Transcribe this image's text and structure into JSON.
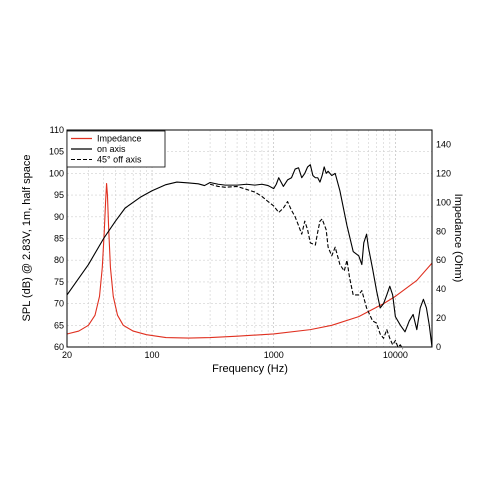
{
  "chart_data": {
    "type": "line",
    "xscale": "log",
    "xlim": [
      20,
      20000
    ],
    "ylim_left": [
      60,
      110
    ],
    "ylim_right": [
      0,
      150
    ],
    "xlabel": "Frequency (Hz)",
    "ylabel_left": "SPL (dB) @ 2.83V, 1m, half space",
    "ylabel_right": "Impedance (Ohm)",
    "x_tick_labels": [
      "20",
      "100",
      "1000",
      "10000"
    ],
    "x_ticks": [
      20,
      100,
      1000,
      10000
    ],
    "y_left_ticks": [
      60,
      65,
      70,
      75,
      80,
      85,
      90,
      95,
      100,
      105,
      110
    ],
    "y_right_ticks": [
      0,
      20,
      40,
      60,
      80,
      100,
      120,
      140
    ],
    "grid": true,
    "legend_position": "top-left",
    "series": [
      {
        "name": "Impedance",
        "axis": "right",
        "color": "#e03020",
        "style": "solid",
        "points": [
          [
            20,
            9
          ],
          [
            25,
            11
          ],
          [
            30,
            15
          ],
          [
            34,
            22
          ],
          [
            37,
            35
          ],
          [
            39,
            55
          ],
          [
            40.5,
            80
          ],
          [
            41.5,
            100
          ],
          [
            42.3,
            113
          ],
          [
            43,
            105
          ],
          [
            44,
            82
          ],
          [
            45.5,
            55
          ],
          [
            48,
            35
          ],
          [
            52,
            22
          ],
          [
            58,
            15
          ],
          [
            70,
            11
          ],
          [
            90,
            8.5
          ],
          [
            130,
            6.5
          ],
          [
            200,
            6.2
          ],
          [
            300,
            6.5
          ],
          [
            500,
            7.5
          ],
          [
            800,
            8.5
          ],
          [
            1000,
            9
          ],
          [
            2000,
            12
          ],
          [
            3000,
            15
          ],
          [
            5000,
            21
          ],
          [
            8000,
            30
          ],
          [
            10000,
            35
          ],
          [
            15000,
            46
          ],
          [
            20000,
            58
          ]
        ]
      },
      {
        "name": "on axis",
        "axis": "left",
        "color": "#000000",
        "style": "solid",
        "points": [
          [
            20,
            72
          ],
          [
            30,
            79
          ],
          [
            40,
            85
          ],
          [
            50,
            89
          ],
          [
            60,
            92
          ],
          [
            80,
            94.5
          ],
          [
            100,
            96
          ],
          [
            130,
            97.4
          ],
          [
            160,
            98
          ],
          [
            200,
            97.8
          ],
          [
            240,
            97.6
          ],
          [
            270,
            97.2
          ],
          [
            300,
            97.9
          ],
          [
            350,
            97.5
          ],
          [
            400,
            97.3
          ],
          [
            500,
            97.3
          ],
          [
            600,
            97.5
          ],
          [
            700,
            97.3
          ],
          [
            800,
            97.5
          ],
          [
            900,
            97.2
          ],
          [
            1000,
            96.5
          ],
          [
            1050,
            97.5
          ],
          [
            1100,
            99
          ],
          [
            1200,
            97
          ],
          [
            1300,
            98.5
          ],
          [
            1400,
            99
          ],
          [
            1500,
            101
          ],
          [
            1600,
            101.3
          ],
          [
            1700,
            99
          ],
          [
            1800,
            100
          ],
          [
            1900,
            101.5
          ],
          [
            2000,
            102
          ],
          [
            2100,
            99.5
          ],
          [
            2200,
            99
          ],
          [
            2300,
            99
          ],
          [
            2400,
            98
          ],
          [
            2500,
            99.5
          ],
          [
            2600,
            101.5
          ],
          [
            2700,
            100
          ],
          [
            2800,
            100.5
          ],
          [
            3000,
            99.5
          ],
          [
            3200,
            100
          ],
          [
            3500,
            96
          ],
          [
            4000,
            88
          ],
          [
            4500,
            82
          ],
          [
            5000,
            81
          ],
          [
            5300,
            79
          ],
          [
            5500,
            84
          ],
          [
            5800,
            86
          ],
          [
            6000,
            83
          ],
          [
            6500,
            78
          ],
          [
            7000,
            73
          ],
          [
            7500,
            69
          ],
          [
            8000,
            70
          ],
          [
            8500,
            72
          ],
          [
            9000,
            74
          ],
          [
            9500,
            72
          ],
          [
            10000,
            67
          ],
          [
            11000,
            65
          ],
          [
            12000,
            63.5
          ],
          [
            13000,
            66
          ],
          [
            14000,
            67.5
          ],
          [
            15000,
            64
          ],
          [
            16000,
            69
          ],
          [
            17000,
            71
          ],
          [
            18000,
            69
          ],
          [
            19000,
            65
          ],
          [
            20000,
            60
          ]
        ]
      },
      {
        "name": "45° off axis",
        "axis": "left",
        "color": "#000000",
        "style": "dashed",
        "points": [
          [
            300,
            97.5
          ],
          [
            350,
            97
          ],
          [
            400,
            96.8
          ],
          [
            500,
            97
          ],
          [
            600,
            96.3
          ],
          [
            700,
            95.7
          ],
          [
            800,
            94.7
          ],
          [
            900,
            93.5
          ],
          [
            1000,
            92.5
          ],
          [
            1100,
            91
          ],
          [
            1200,
            92
          ],
          [
            1300,
            93.5
          ],
          [
            1400,
            91.5
          ],
          [
            1500,
            90
          ],
          [
            1600,
            88
          ],
          [
            1700,
            86
          ],
          [
            1800,
            89
          ],
          [
            1900,
            87
          ],
          [
            2000,
            84
          ],
          [
            2200,
            83.5
          ],
          [
            2300,
            86.5
          ],
          [
            2400,
            89
          ],
          [
            2500,
            89.5
          ],
          [
            2700,
            87
          ],
          [
            2800,
            83
          ],
          [
            3000,
            81
          ],
          [
            3200,
            83
          ],
          [
            3500,
            79
          ],
          [
            3800,
            77.5
          ],
          [
            4000,
            80
          ],
          [
            4200,
            76
          ],
          [
            4500,
            72
          ],
          [
            5000,
            72
          ],
          [
            5300,
            73
          ],
          [
            5800,
            69
          ],
          [
            6500,
            66
          ],
          [
            7000,
            65.5
          ],
          [
            7500,
            63
          ],
          [
            8000,
            62
          ],
          [
            8500,
            64
          ],
          [
            9000,
            62
          ],
          [
            9500,
            60.5
          ],
          [
            10000,
            61.5
          ],
          [
            10500,
            60
          ],
          [
            11000,
            60.5
          ],
          [
            11500,
            59.5
          ]
        ]
      }
    ]
  }
}
